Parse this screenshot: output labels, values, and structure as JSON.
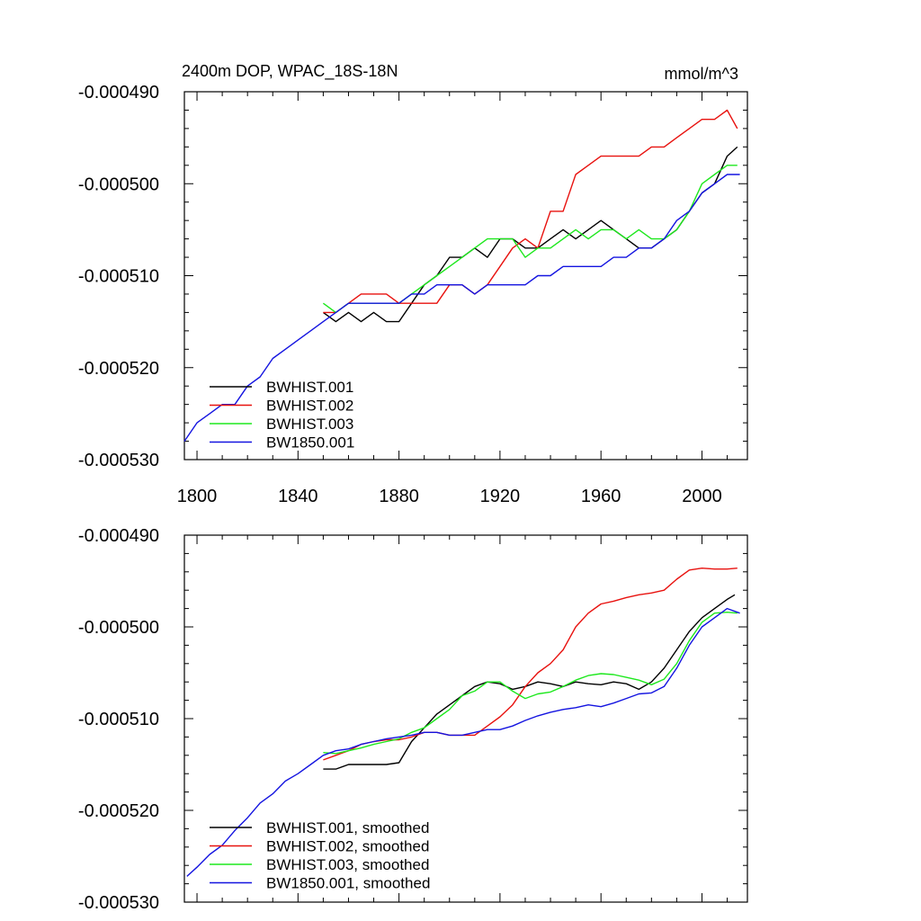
{
  "colors": {
    "black": "#000000",
    "red": "#e8120f",
    "green": "#1ee81e",
    "blue": "#1414e0"
  },
  "chart_data": [
    {
      "type": "line",
      "title": "2400m DOP, WPAC_18S-18N",
      "units": "mmol/m^3",
      "xlim": [
        1795,
        2018
      ],
      "ylim": [
        -0.00053,
        -0.00049
      ],
      "xticks": [
        1800,
        1840,
        1880,
        1920,
        1960,
        2000
      ],
      "xtick_labels": [
        "1800",
        "1840",
        "1880",
        "1920",
        "1960",
        "2000"
      ],
      "yticks": [
        -0.00049,
        -0.0005,
        -0.00051,
        -0.00052,
        -0.00053
      ],
      "ytick_labels": [
        "-0.000490",
        "-0.000500",
        "-0.000510",
        "-0.000520",
        "-0.000530"
      ],
      "legend_position": "bottom-left",
      "series": [
        {
          "name": "BWHIST.001",
          "color": "#000000",
          "x": [
            1850,
            1855,
            1860,
            1865,
            1870,
            1875,
            1880,
            1885,
            1890,
            1895,
            1900,
            1905,
            1910,
            1915,
            1920,
            1925,
            1930,
            1935,
            1940,
            1945,
            1950,
            1955,
            1960,
            1965,
            1970,
            1975,
            1980,
            1985,
            1990,
            1995,
            2000,
            2005,
            2010,
            2014
          ],
          "y": [
            -0.000514,
            -0.000515,
            -0.000514,
            -0.000515,
            -0.000514,
            -0.000515,
            -0.000515,
            -0.000513,
            -0.000511,
            -0.00051,
            -0.000508,
            -0.000508,
            -0.000507,
            -0.000508,
            -0.000506,
            -0.000506,
            -0.000507,
            -0.000507,
            -0.000506,
            -0.000505,
            -0.000506,
            -0.000505,
            -0.000504,
            -0.000505,
            -0.000506,
            -0.000507,
            -0.000507,
            -0.000506,
            -0.000505,
            -0.000503,
            -0.000501,
            -0.0005,
            -0.000497,
            -0.000496
          ]
        },
        {
          "name": "BWHIST.002",
          "color": "#e8120f",
          "x": [
            1850,
            1855,
            1860,
            1865,
            1870,
            1875,
            1880,
            1885,
            1890,
            1895,
            1900,
            1905,
            1910,
            1915,
            1920,
            1925,
            1930,
            1935,
            1940,
            1945,
            1950,
            1955,
            1960,
            1965,
            1970,
            1975,
            1980,
            1985,
            1990,
            1995,
            2000,
            2005,
            2010,
            2014
          ],
          "y": [
            -0.000514,
            -0.000514,
            -0.000513,
            -0.000512,
            -0.000512,
            -0.000512,
            -0.000513,
            -0.000513,
            -0.000513,
            -0.000513,
            -0.000511,
            -0.000511,
            -0.000512,
            -0.000511,
            -0.000509,
            -0.000507,
            -0.000506,
            -0.000507,
            -0.000503,
            -0.000503,
            -0.000499,
            -0.000498,
            -0.000497,
            -0.000497,
            -0.000497,
            -0.000497,
            -0.000496,
            -0.000496,
            -0.000495,
            -0.000494,
            -0.000493,
            -0.000493,
            -0.000492,
            -0.000494
          ]
        },
        {
          "name": "BWHIST.003",
          "color": "#1ee81e",
          "x": [
            1850,
            1855,
            1860,
            1865,
            1870,
            1875,
            1880,
            1885,
            1890,
            1895,
            1900,
            1905,
            1910,
            1915,
            1920,
            1925,
            1930,
            1935,
            1940,
            1945,
            1950,
            1955,
            1960,
            1965,
            1970,
            1975,
            1980,
            1985,
            1990,
            1995,
            2000,
            2005,
            2010,
            2014
          ],
          "y": [
            -0.000513,
            -0.000514,
            -0.000513,
            -0.000513,
            -0.000513,
            -0.000513,
            -0.000513,
            -0.000512,
            -0.000511,
            -0.00051,
            -0.000509,
            -0.000508,
            -0.000507,
            -0.000506,
            -0.000506,
            -0.000506,
            -0.000508,
            -0.000507,
            -0.000507,
            -0.000506,
            -0.000505,
            -0.000506,
            -0.000505,
            -0.000505,
            -0.000506,
            -0.000505,
            -0.000506,
            -0.000506,
            -0.000505,
            -0.000503,
            -0.0005,
            -0.000499,
            -0.000498,
            -0.000498
          ]
        },
        {
          "name": "BW1850.001",
          "color": "#1414e0",
          "x": [
            1795,
            1800,
            1805,
            1810,
            1815,
            1820,
            1825,
            1830,
            1835,
            1840,
            1845,
            1850,
            1855,
            1860,
            1865,
            1870,
            1875,
            1880,
            1885,
            1890,
            1895,
            1900,
            1905,
            1910,
            1915,
            1920,
            1925,
            1930,
            1935,
            1940,
            1945,
            1950,
            1955,
            1960,
            1965,
            1970,
            1975,
            1980,
            1985,
            1990,
            1995,
            2000,
            2005,
            2010,
            2015
          ],
          "y": [
            -0.000528,
            -0.000526,
            -0.000525,
            -0.000524,
            -0.000524,
            -0.000522,
            -0.000521,
            -0.000519,
            -0.000518,
            -0.000517,
            -0.000516,
            -0.000515,
            -0.000514,
            -0.000513,
            -0.000513,
            -0.000513,
            -0.000513,
            -0.000513,
            -0.000512,
            -0.000512,
            -0.000511,
            -0.000511,
            -0.000511,
            -0.000512,
            -0.000511,
            -0.000511,
            -0.000511,
            -0.000511,
            -0.00051,
            -0.00051,
            -0.000509,
            -0.000509,
            -0.000509,
            -0.000509,
            -0.000508,
            -0.000508,
            -0.000507,
            -0.000507,
            -0.000506,
            -0.000504,
            -0.000503,
            -0.000501,
            -0.0005,
            -0.000499,
            -0.000499
          ]
        }
      ]
    },
    {
      "type": "line",
      "xlim": [
        1795,
        2018
      ],
      "ylim": [
        -0.00053,
        -0.00049
      ],
      "xticks": [
        1800,
        1840,
        1880,
        1920,
        1960,
        2000
      ],
      "yticks": [
        -0.00049,
        -0.0005,
        -0.00051,
        -0.00052,
        -0.00053
      ],
      "ytick_labels": [
        "-0.000490",
        "-0.000500",
        "-0.000510",
        "-0.000520",
        "-0.000530"
      ],
      "legend_position": "bottom-left",
      "series": [
        {
          "name": "BWHIST.001, smoothed",
          "color": "#000000",
          "x": [
            1850,
            1855,
            1860,
            1865,
            1870,
            1875,
            1880,
            1885,
            1890,
            1895,
            1900,
            1905,
            1910,
            1915,
            1920,
            1925,
            1930,
            1935,
            1940,
            1945,
            1950,
            1955,
            1960,
            1965,
            1970,
            1975,
            1980,
            1985,
            1990,
            1995,
            2000,
            2005,
            2010,
            2013
          ],
          "y": [
            -0.0005155,
            -0.0005155,
            -0.000515,
            -0.000515,
            -0.000515,
            -0.000515,
            -0.0005148,
            -0.0005125,
            -0.000511,
            -0.0005095,
            -0.0005085,
            -0.0005075,
            -0.0005065,
            -0.000506,
            -0.0005062,
            -0.0005068,
            -0.0005065,
            -0.000506,
            -0.0005062,
            -0.0005065,
            -0.000506,
            -0.0005062,
            -0.0005063,
            -0.000506,
            -0.0005062,
            -0.0005068,
            -0.000506,
            -0.0005045,
            -0.0005025,
            -0.0005005,
            -0.000499,
            -0.000498,
            -0.000497,
            -0.0004965
          ]
        },
        {
          "name": "BWHIST.002, smoothed",
          "color": "#e8120f",
          "x": [
            1850,
            1855,
            1860,
            1865,
            1870,
            1875,
            1880,
            1885,
            1890,
            1895,
            1900,
            1905,
            1910,
            1915,
            1920,
            1925,
            1930,
            1935,
            1940,
            1945,
            1950,
            1955,
            1960,
            1965,
            1970,
            1975,
            1980,
            1985,
            1990,
            1995,
            2000,
            2005,
            2010,
            2014
          ],
          "y": [
            -0.0005145,
            -0.000514,
            -0.0005135,
            -0.0005128,
            -0.0005125,
            -0.0005123,
            -0.0005123,
            -0.000512,
            -0.0005115,
            -0.0005115,
            -0.0005118,
            -0.0005118,
            -0.0005118,
            -0.0005108,
            -0.0005098,
            -0.0005085,
            -0.0005065,
            -0.000505,
            -0.000504,
            -0.0005025,
            -0.0005,
            -0.0004985,
            -0.0004975,
            -0.0004972,
            -0.0004968,
            -0.0004965,
            -0.0004963,
            -0.000496,
            -0.0004948,
            -0.0004938,
            -0.0004936,
            -0.0004937,
            -0.0004937,
            -0.0004936
          ]
        },
        {
          "name": "BWHIST.003, smoothed",
          "color": "#1ee81e",
          "x": [
            1850,
            1855,
            1860,
            1865,
            1870,
            1875,
            1880,
            1885,
            1890,
            1895,
            1900,
            1905,
            1910,
            1915,
            1920,
            1925,
            1930,
            1935,
            1940,
            1945,
            1950,
            1955,
            1960,
            1965,
            1970,
            1975,
            1980,
            1985,
            1990,
            1995,
            2000,
            2005,
            2010,
            2014
          ],
          "y": [
            -0.0005137,
            -0.0005138,
            -0.0005135,
            -0.0005132,
            -0.0005128,
            -0.0005125,
            -0.0005122,
            -0.0005115,
            -0.000511,
            -0.00051,
            -0.000509,
            -0.0005075,
            -0.000507,
            -0.000506,
            -0.000506,
            -0.000507,
            -0.0005078,
            -0.0005073,
            -0.0005071,
            -0.0005065,
            -0.0005058,
            -0.0005053,
            -0.0005051,
            -0.0005052,
            -0.0005055,
            -0.0005058,
            -0.0005063,
            -0.0005057,
            -0.000504,
            -0.0005015,
            -0.0004995,
            -0.0004985,
            -0.0004984,
            -0.0004985
          ]
        },
        {
          "name": "BW1850.001, smoothed",
          "color": "#1414e0",
          "x": [
            1796,
            1800,
            1805,
            1810,
            1815,
            1820,
            1825,
            1830,
            1835,
            1840,
            1845,
            1850,
            1855,
            1860,
            1865,
            1870,
            1875,
            1880,
            1885,
            1890,
            1895,
            1900,
            1905,
            1910,
            1915,
            1920,
            1925,
            1930,
            1935,
            1940,
            1945,
            1950,
            1955,
            1960,
            1965,
            1970,
            1975,
            1980,
            1985,
            1990,
            1995,
            2000,
            2005,
            2010,
            2015
          ],
          "y": [
            -0.0005272,
            -0.0005262,
            -0.0005248,
            -0.0005238,
            -0.0005222,
            -0.0005208,
            -0.0005192,
            -0.0005182,
            -0.0005168,
            -0.000516,
            -0.000515,
            -0.000514,
            -0.0005135,
            -0.0005133,
            -0.0005128,
            -0.0005125,
            -0.0005122,
            -0.000512,
            -0.0005118,
            -0.0005115,
            -0.0005115,
            -0.0005118,
            -0.0005118,
            -0.0005115,
            -0.0005112,
            -0.0005112,
            -0.0005108,
            -0.0005102,
            -0.0005097,
            -0.0005093,
            -0.000509,
            -0.0005088,
            -0.0005085,
            -0.0005087,
            -0.0005083,
            -0.0005078,
            -0.0005073,
            -0.0005072,
            -0.0005065,
            -0.0005045,
            -0.000502,
            -0.0005,
            -0.000499,
            -0.000498,
            -0.0004985
          ]
        }
      ]
    }
  ]
}
